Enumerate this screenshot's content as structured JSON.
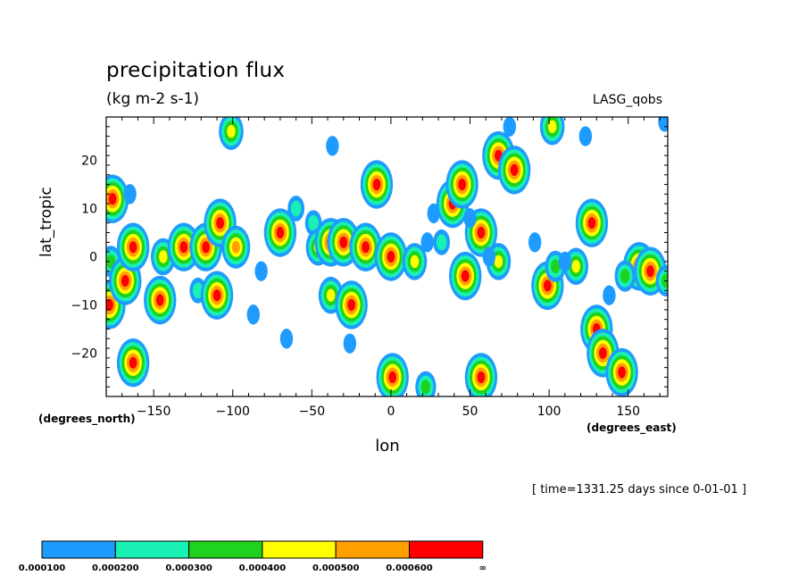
{
  "header": {
    "title": "precipitation flux",
    "units": "(kg m-2 s-1)",
    "source": "LASG_qobs",
    "timestamp": "[ time=1331.25 days since 0-01-01 ]"
  },
  "chart_data": {
    "type": "heatmap",
    "xlabel": "lon",
    "ylabel": "lat_tropic",
    "x_unit_label": "(degrees_east)",
    "y_unit_label": "(degrees_north)",
    "xlim": [
      -180,
      175
    ],
    "ylim": [
      -29,
      29
    ],
    "x_ticks": [
      -150,
      -100,
      -50,
      0,
      50,
      100,
      150
    ],
    "y_ticks": [
      -20,
      -10,
      0,
      10,
      20
    ],
    "levels": [
      "0.000100",
      "0.000200",
      "0.000300",
      "0.000400",
      "0.000500",
      "0.000600",
      "∞"
    ],
    "level_colors": [
      "#1e9bff",
      "#19f0b4",
      "#1ed21e",
      "#ffff00",
      "#ffa000",
      "#ff0000"
    ],
    "cells": [
      {
        "lon": -176,
        "lat": 12,
        "lvl": 6
      },
      {
        "lon": -177,
        "lat": -1,
        "lvl": 3
      },
      {
        "lon": -178,
        "lat": -10,
        "lvl": 6
      },
      {
        "lon": -168,
        "lat": -5,
        "lvl": 6
      },
      {
        "lon": -163,
        "lat": -22,
        "lvl": 6
      },
      {
        "lon": -163,
        "lat": 2,
        "lvl": 6
      },
      {
        "lon": -165,
        "lat": 13,
        "lvl": 1
      },
      {
        "lon": -144,
        "lat": 0,
        "lvl": 4
      },
      {
        "lon": -146,
        "lat": -9,
        "lvl": 6
      },
      {
        "lon": -131,
        "lat": 2,
        "lvl": 6
      },
      {
        "lon": -122,
        "lat": -7,
        "lvl": 2
      },
      {
        "lon": -117,
        "lat": 2,
        "lvl": 6
      },
      {
        "lon": -108,
        "lat": 7,
        "lvl": 6
      },
      {
        "lon": -110,
        "lat": -8,
        "lvl": 6
      },
      {
        "lon": -98,
        "lat": 2,
        "lvl": 5
      },
      {
        "lon": -101,
        "lat": 26,
        "lvl": 4
      },
      {
        "lon": -87,
        "lat": -12,
        "lvl": 1
      },
      {
        "lon": -82,
        "lat": -3,
        "lvl": 1
      },
      {
        "lon": -70,
        "lat": 5,
        "lvl": 6
      },
      {
        "lon": -66,
        "lat": -17,
        "lvl": 1
      },
      {
        "lon": -60,
        "lat": 10,
        "lvl": 2
      },
      {
        "lon": -49,
        "lat": 7,
        "lvl": 2
      },
      {
        "lon": -46,
        "lat": 2,
        "lvl": 4
      },
      {
        "lon": -38,
        "lat": 3,
        "lvl": 6
      },
      {
        "lon": -38,
        "lat": -8,
        "lvl": 4
      },
      {
        "lon": -37,
        "lat": 23,
        "lvl": 1
      },
      {
        "lon": -30,
        "lat": 3,
        "lvl": 6
      },
      {
        "lon": -25,
        "lat": -10,
        "lvl": 6
      },
      {
        "lon": -26,
        "lat": -18,
        "lvl": 1
      },
      {
        "lon": -16,
        "lat": 2,
        "lvl": 6
      },
      {
        "lon": -9,
        "lat": 15,
        "lvl": 6
      },
      {
        "lon": 0,
        "lat": 0,
        "lvl": 6
      },
      {
        "lon": 1,
        "lat": -25,
        "lvl": 6
      },
      {
        "lon": 15,
        "lat": -1,
        "lvl": 4
      },
      {
        "lon": 23,
        "lat": 3,
        "lvl": 1
      },
      {
        "lon": 22,
        "lat": -27,
        "lvl": 3
      },
      {
        "lon": 27,
        "lat": 9,
        "lvl": 1
      },
      {
        "lon": 32,
        "lat": 3,
        "lvl": 2
      },
      {
        "lon": 39,
        "lat": 11,
        "lvl": 6
      },
      {
        "lon": 45,
        "lat": 15,
        "lvl": 6
      },
      {
        "lon": 47,
        "lat": -4,
        "lvl": 6
      },
      {
        "lon": 57,
        "lat": 5,
        "lvl": 6
      },
      {
        "lon": 57,
        "lat": -25,
        "lvl": 6
      },
      {
        "lon": 68,
        "lat": 21,
        "lvl": 6
      },
      {
        "lon": 68,
        "lat": -1,
        "lvl": 4
      },
      {
        "lon": 78,
        "lat": 18,
        "lvl": 6
      },
      {
        "lon": 75,
        "lat": 27,
        "lvl": 1
      },
      {
        "lon": 99,
        "lat": -6,
        "lvl": 6
      },
      {
        "lon": 102,
        "lat": 27,
        "lvl": 4
      },
      {
        "lon": 104,
        "lat": -2,
        "lvl": 3
      },
      {
        "lon": 117,
        "lat": -2,
        "lvl": 4
      },
      {
        "lon": 123,
        "lat": 25,
        "lvl": 1
      },
      {
        "lon": 127,
        "lat": 7,
        "lvl": 6
      },
      {
        "lon": 130,
        "lat": -15,
        "lvl": 6
      },
      {
        "lon": 134,
        "lat": -20,
        "lvl": 6
      },
      {
        "lon": 146,
        "lat": -24,
        "lvl": 6
      },
      {
        "lon": 157,
        "lat": -2,
        "lvl": 6
      },
      {
        "lon": 164,
        "lat": -3,
        "lvl": 6
      },
      {
        "lon": 148,
        "lat": -4,
        "lvl": 3
      },
      {
        "lon": 174,
        "lat": -5,
        "lvl": 3
      },
      {
        "lon": 173,
        "lat": 28,
        "lvl": 1
      },
      {
        "lon": 138,
        "lat": -8,
        "lvl": 1
      },
      {
        "lon": 91,
        "lat": 3,
        "lvl": 1
      },
      {
        "lon": 110,
        "lat": -1,
        "lvl": 1
      },
      {
        "lon": 62,
        "lat": 0,
        "lvl": 1
      },
      {
        "lon": 50,
        "lat": 8,
        "lvl": 1
      }
    ]
  }
}
